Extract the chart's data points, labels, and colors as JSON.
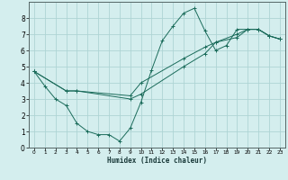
{
  "xlabel": "Humidex (Indice chaleur)",
  "ylabel": "",
  "bg_color": "#d4eeee",
  "grid_color": "#aed4d4",
  "line_color": "#1a6b5a",
  "xlim": [
    -0.5,
    23.5
  ],
  "ylim": [
    0,
    9
  ],
  "xticks": [
    0,
    1,
    2,
    3,
    4,
    5,
    6,
    7,
    8,
    9,
    10,
    11,
    12,
    13,
    14,
    15,
    16,
    17,
    18,
    19,
    20,
    21,
    22,
    23
  ],
  "yticks": [
    0,
    1,
    2,
    3,
    4,
    5,
    6,
    7,
    8
  ],
  "line1_x": [
    0,
    1,
    2,
    3,
    4,
    5,
    6,
    7,
    8,
    9,
    10,
    11,
    12,
    13,
    14,
    15,
    16,
    17,
    18,
    19,
    20,
    21,
    22,
    23
  ],
  "line1_y": [
    4.7,
    3.8,
    3.0,
    2.6,
    1.5,
    1.0,
    0.8,
    0.8,
    0.4,
    1.2,
    2.8,
    4.8,
    6.6,
    7.5,
    8.3,
    8.6,
    7.2,
    6.0,
    6.3,
    7.3,
    7.3,
    7.3,
    6.9,
    6.7
  ],
  "line2_x": [
    0,
    3,
    4,
    9,
    10,
    14,
    16,
    17,
    19,
    20,
    21,
    22,
    23
  ],
  "line2_y": [
    4.7,
    3.5,
    3.5,
    3.0,
    3.3,
    5.0,
    5.8,
    6.5,
    6.8,
    7.3,
    7.3,
    6.9,
    6.7
  ],
  "line3_x": [
    0,
    3,
    4,
    9,
    10,
    14,
    16,
    17,
    19,
    20,
    21,
    22,
    23
  ],
  "line3_y": [
    4.7,
    3.5,
    3.5,
    3.2,
    4.0,
    5.5,
    6.2,
    6.5,
    7.0,
    7.3,
    7.3,
    6.9,
    6.7
  ]
}
